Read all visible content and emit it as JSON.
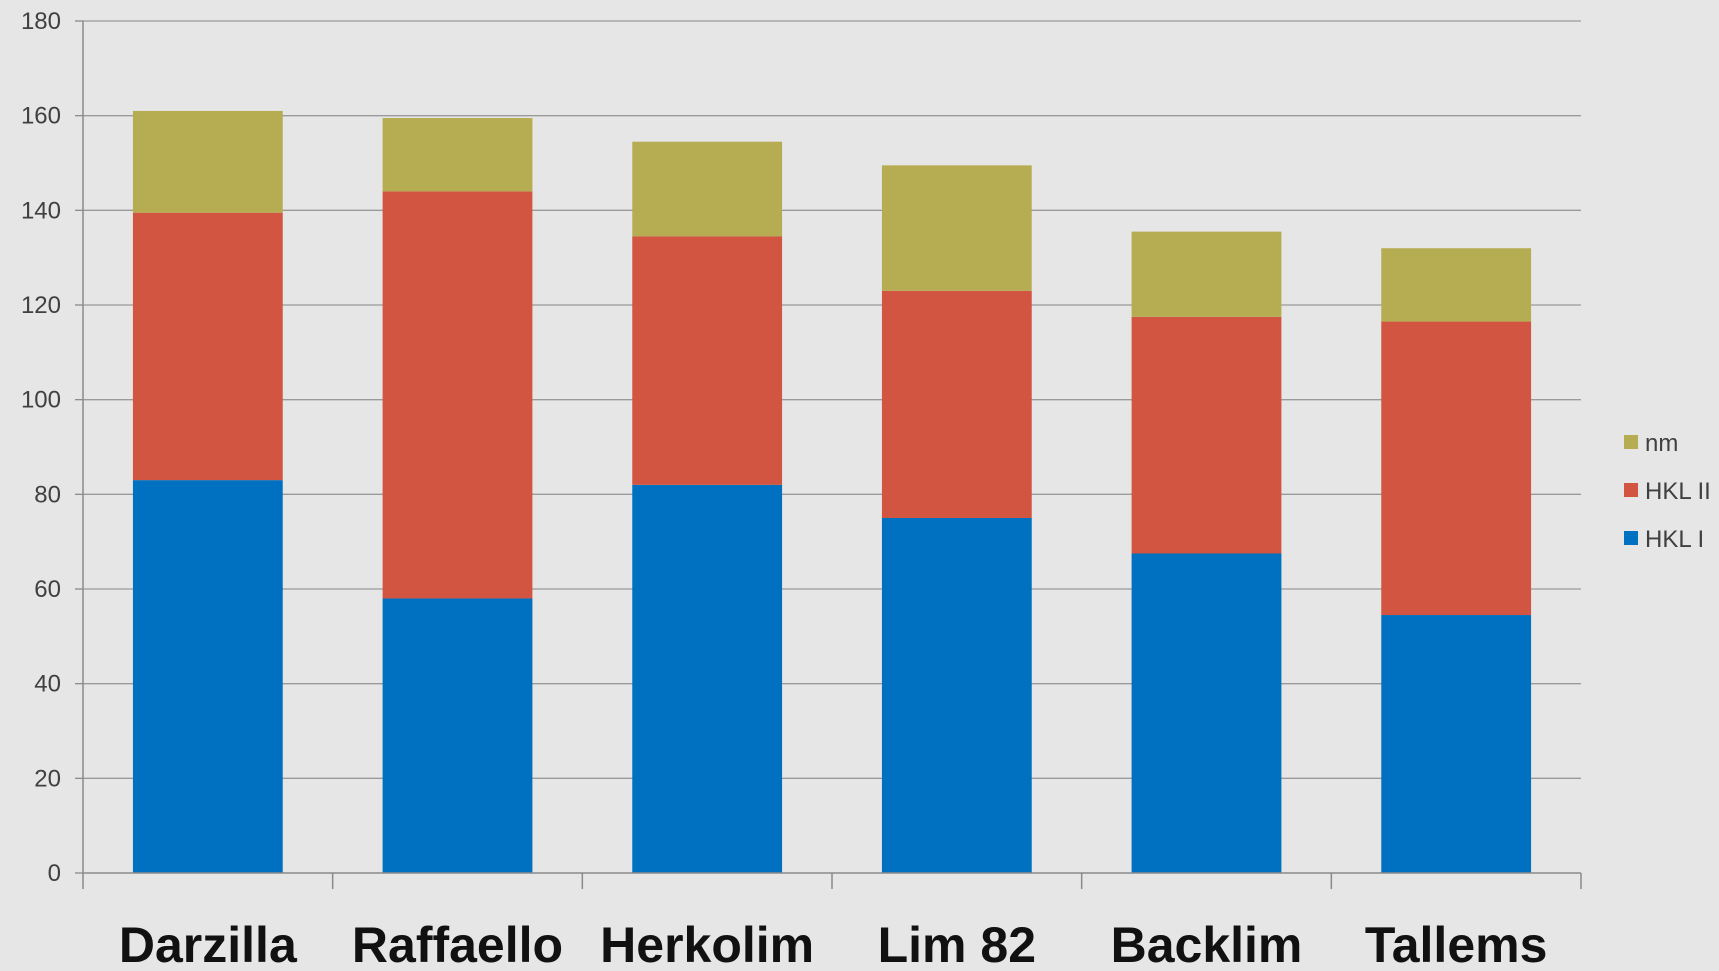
{
  "chart_data": {
    "type": "bar",
    "stacked": true,
    "categories": [
      "Darzilla",
      "Raffaello",
      "Herkolim",
      "Lim 82",
      "Backlim",
      "Tallems"
    ],
    "series": [
      {
        "name": "HKL I",
        "color": "#0070c0",
        "values": [
          83,
          58,
          82,
          75,
          67.5,
          54.5
        ]
      },
      {
        "name": "HKL II",
        "color": "#d15540",
        "values": [
          56.5,
          86,
          52.5,
          48,
          50,
          62
        ]
      },
      {
        "name": "nm",
        "color": "#b6ac52",
        "values": [
          21.5,
          15.5,
          20,
          26.5,
          18,
          15.5
        ]
      }
    ],
    "ylim": [
      0,
      180
    ],
    "yticks": [
      0,
      20,
      40,
      60,
      80,
      100,
      120,
      140,
      160,
      180
    ],
    "grid": true,
    "legend_position": "right",
    "legend_order": [
      "nm",
      "HKL II",
      "HKL I"
    ],
    "title": "",
    "xlabel": "",
    "ylabel": ""
  }
}
